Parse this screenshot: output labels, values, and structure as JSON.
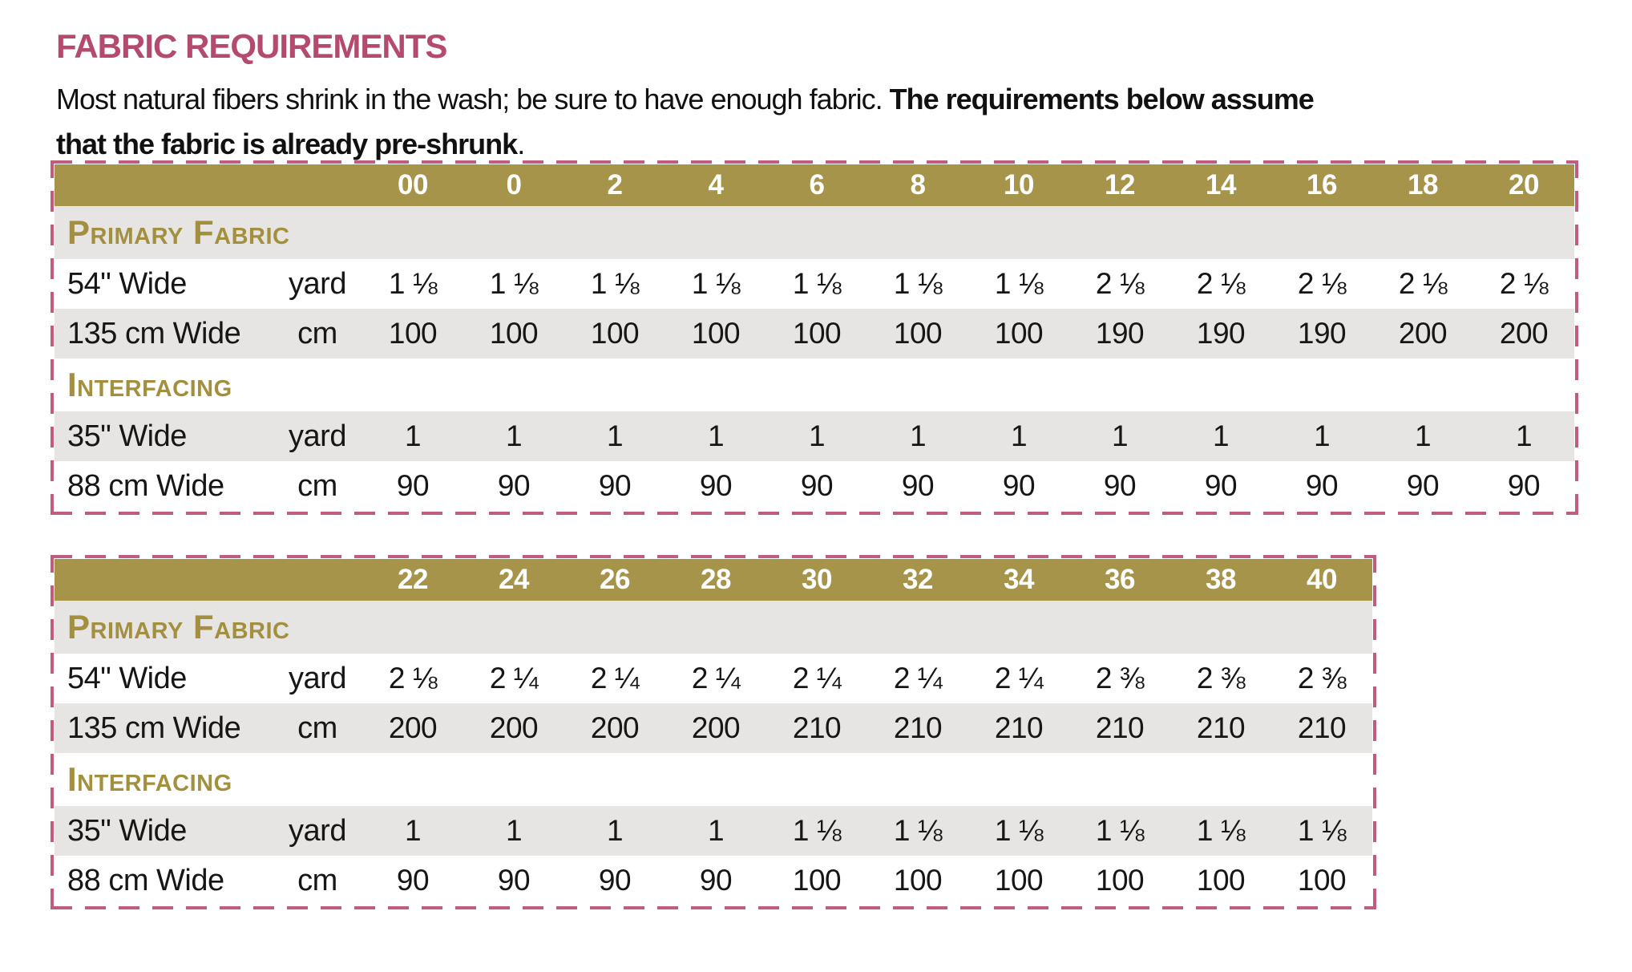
{
  "title": "FABRIC REQUIREMENTS",
  "intro": {
    "line1_regular": "Most natural fibers shrink in the wash; be sure to have enough fabric. ",
    "line1_bold": "The requirements below assume",
    "line2_bold": "that the fabric is already pre-shrunk",
    "line2_period": "."
  },
  "colors": {
    "header_olive": "#a6944a",
    "section_label_olive": "#a3903f",
    "title_pink": "#b44a6d",
    "dashed_border_pink": "#c05c7e",
    "row_gray": "#e6e5e3"
  },
  "tables": [
    {
      "sizes": [
        "00",
        "0",
        "2",
        "4",
        "6",
        "8",
        "10",
        "12",
        "14",
        "16",
        "18",
        "20"
      ],
      "sections": [
        {
          "label": "Primary Fabric",
          "rows": [
            {
              "label": "54\" Wide",
              "unit": "yard",
              "values": [
                "1 ⅛",
                "1 ⅛",
                "1 ⅛",
                "1 ⅛",
                "1 ⅛",
                "1 ⅛",
                "1 ⅛",
                "2 ⅛",
                "2 ⅛",
                "2 ⅛",
                "2 ⅛",
                "2 ⅛"
              ]
            },
            {
              "label": "135 cm Wide",
              "unit": "cm",
              "values": [
                "100",
                "100",
                "100",
                "100",
                "100",
                "100",
                "100",
                "190",
                "190",
                "190",
                "200",
                "200"
              ]
            }
          ]
        },
        {
          "label": "Interfacing",
          "rows": [
            {
              "label": "35\" Wide",
              "unit": "yard",
              "values": [
                "1",
                "1",
                "1",
                "1",
                "1",
                "1",
                "1",
                "1",
                "1",
                "1",
                "1",
                "1"
              ]
            },
            {
              "label": "88 cm Wide",
              "unit": "cm",
              "values": [
                "90",
                "90",
                "90",
                "90",
                "90",
                "90",
                "90",
                "90",
                "90",
                "90",
                "90",
                "90"
              ]
            }
          ]
        }
      ]
    },
    {
      "sizes": [
        "22",
        "24",
        "26",
        "28",
        "30",
        "32",
        "34",
        "36",
        "38",
        "40"
      ],
      "sections": [
        {
          "label": "Primary Fabric",
          "rows": [
            {
              "label": "54\" Wide",
              "unit": "yard",
              "values": [
                "2 ⅛",
                "2 ¼",
                "2 ¼",
                "2 ¼",
                "2 ¼",
                "2 ¼",
                "2 ¼",
                "2 ⅜",
                "2 ⅜",
                "2 ⅜"
              ]
            },
            {
              "label": "135 cm Wide",
              "unit": "cm",
              "values": [
                "200",
                "200",
                "200",
                "200",
                "210",
                "210",
                "210",
                "210",
                "210",
                "210"
              ]
            }
          ]
        },
        {
          "label": "Interfacing",
          "rows": [
            {
              "label": "35\" Wide",
              "unit": "yard",
              "values": [
                "1",
                "1",
                "1",
                "1",
                "1 ⅛",
                "1 ⅛",
                "1 ⅛",
                "1 ⅛",
                "1 ⅛",
                "1 ⅛"
              ]
            },
            {
              "label": "88 cm Wide",
              "unit": "cm",
              "values": [
                "90",
                "90",
                "90",
                "90",
                "100",
                "100",
                "100",
                "100",
                "100",
                "100"
              ]
            }
          ]
        }
      ]
    }
  ]
}
